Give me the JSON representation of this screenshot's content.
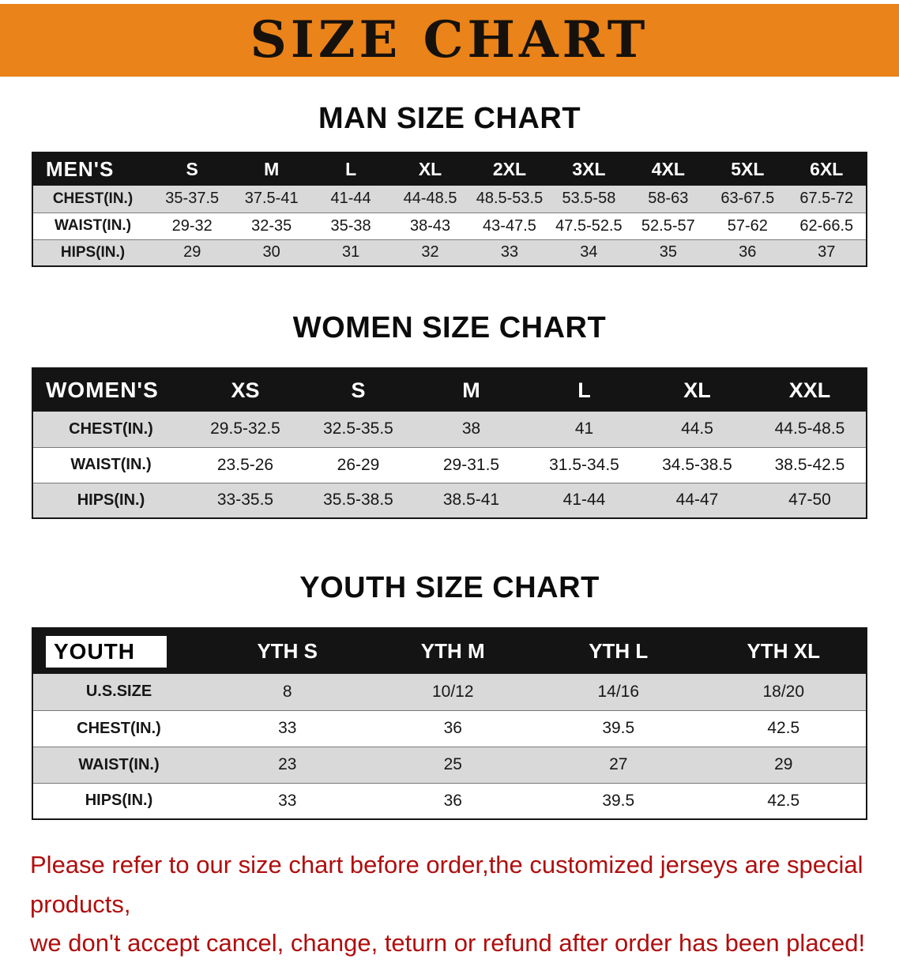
{
  "banner": {
    "title": "SIZE CHART"
  },
  "sections": [
    {
      "title": "MAN SIZE CHART",
      "header": [
        "MEN'S",
        "S",
        "M",
        "L",
        "XL",
        "2XL",
        "3XL",
        "4XL",
        "5XL",
        "6XL"
      ],
      "rows": [
        [
          "CHEST(IN.)",
          "35-37.5",
          "37.5-41",
          "41-44",
          "44-48.5",
          "48.5-53.5",
          "53.5-58",
          "58-63",
          "63-67.5",
          "67.5-72"
        ],
        [
          "WAIST(IN.)",
          "29-32",
          "32-35",
          "35-38",
          "38-43",
          "43-47.5",
          "47.5-52.5",
          "52.5-57",
          "57-62",
          "62-66.5"
        ],
        [
          "HIPS(IN.)",
          "29",
          "30",
          "31",
          "32",
          "33",
          "34",
          "35",
          "36",
          "37"
        ]
      ]
    },
    {
      "title": "WOMEN SIZE CHART",
      "header": [
        "WOMEN'S",
        "XS",
        "S",
        "M",
        "L",
        "XL",
        "XXL"
      ],
      "rows": [
        [
          "CHEST(IN.)",
          "29.5-32.5",
          "32.5-35.5",
          "38",
          "41",
          "44.5",
          "44.5-48.5"
        ],
        [
          "WAIST(IN.)",
          "23.5-26",
          "26-29",
          "29-31.5",
          "31.5-34.5",
          "34.5-38.5",
          "38.5-42.5"
        ],
        [
          "HIPS(IN.)",
          "33-35.5",
          "35.5-38.5",
          "38.5-41",
          "41-44",
          "44-47",
          "47-50"
        ]
      ]
    },
    {
      "title": "YOUTH SIZE CHART",
      "header": [
        "YOUTH",
        "YTH S",
        "YTH M",
        "YTH L",
        "YTH XL"
      ],
      "rows": [
        [
          "U.S.SIZE",
          "8",
          "10/12",
          "14/16",
          "18/20"
        ],
        [
          "CHEST(IN.)",
          "33",
          "36",
          "39.5",
          "42.5"
        ],
        [
          "WAIST(IN.)",
          "23",
          "25",
          "27",
          "29"
        ],
        [
          "HIPS(IN.)",
          "33",
          "36",
          "39.5",
          "42.5"
        ]
      ]
    }
  ],
  "disclaimer": {
    "line1": "Please refer to our size chart before order,the customized jerseys are special products,",
    "line2": "we don't accept cancel, change, teturn or refund after order has been placed!"
  },
  "colors": {
    "banner_bg": "#EA8319",
    "table_header_bg": "#141414",
    "row_stripe": "#D9D9D9",
    "disclaimer_text": "#B00E0E"
  }
}
